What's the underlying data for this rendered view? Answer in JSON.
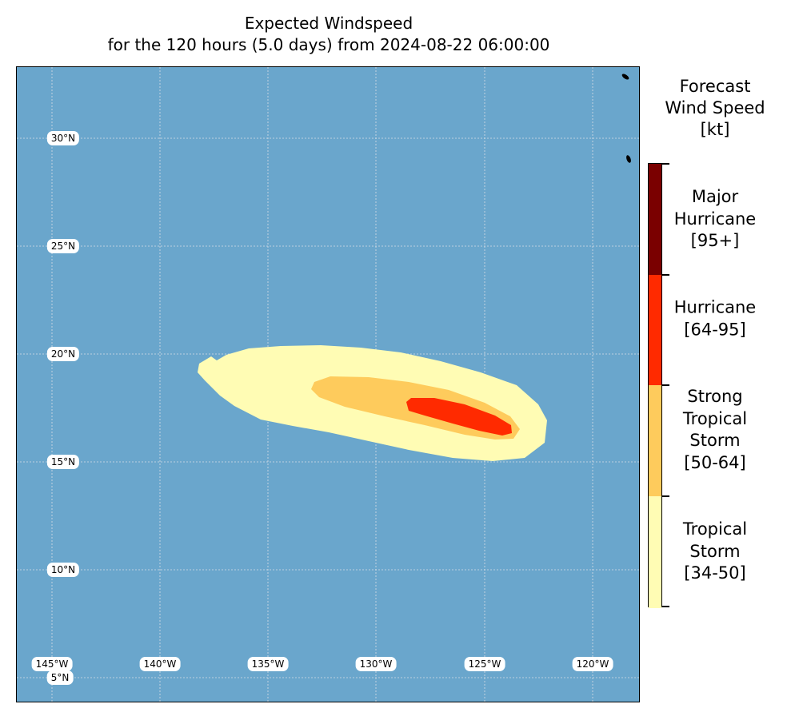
{
  "title": {
    "line1": "Expected Windspeed",
    "line2": "for the 120 hours (5.0 days) from 2024-08-22 06:00:00"
  },
  "map": {
    "ocean_color": "#6aa6cc",
    "grid_color": "#d8dee6",
    "lat_labels": [
      "30°N",
      "25°N",
      "20°N",
      "15°N",
      "10°N",
      "5°N"
    ],
    "lon_labels": [
      "145°W",
      "140°W",
      "135°W",
      "130°W",
      "125°W",
      "120°W"
    ],
    "wind_zones": [
      {
        "category": "Tropical Storm",
        "color": "#fffcb4"
      },
      {
        "category": "Strong Tropical Storm",
        "color": "#fecb5c"
      },
      {
        "category": "Hurricane",
        "color": "#ff2a00"
      }
    ]
  },
  "legend": {
    "title": [
      "Forecast",
      "Wind Speed",
      "[kt]"
    ],
    "categories": [
      {
        "lines": [
          "Major",
          "Hurricane",
          "[95+]"
        ],
        "color": "#7a0000"
      },
      {
        "lines": [
          "Hurricane",
          "[64-95]"
        ],
        "color": "#ff2a00"
      },
      {
        "lines": [
          "Strong",
          "Tropical",
          "Storm",
          "[50-64]"
        ],
        "color": "#fecb5c"
      },
      {
        "lines": [
          "Tropical",
          "Storm",
          "[34-50]"
        ],
        "color": "#fffcb4"
      }
    ]
  }
}
